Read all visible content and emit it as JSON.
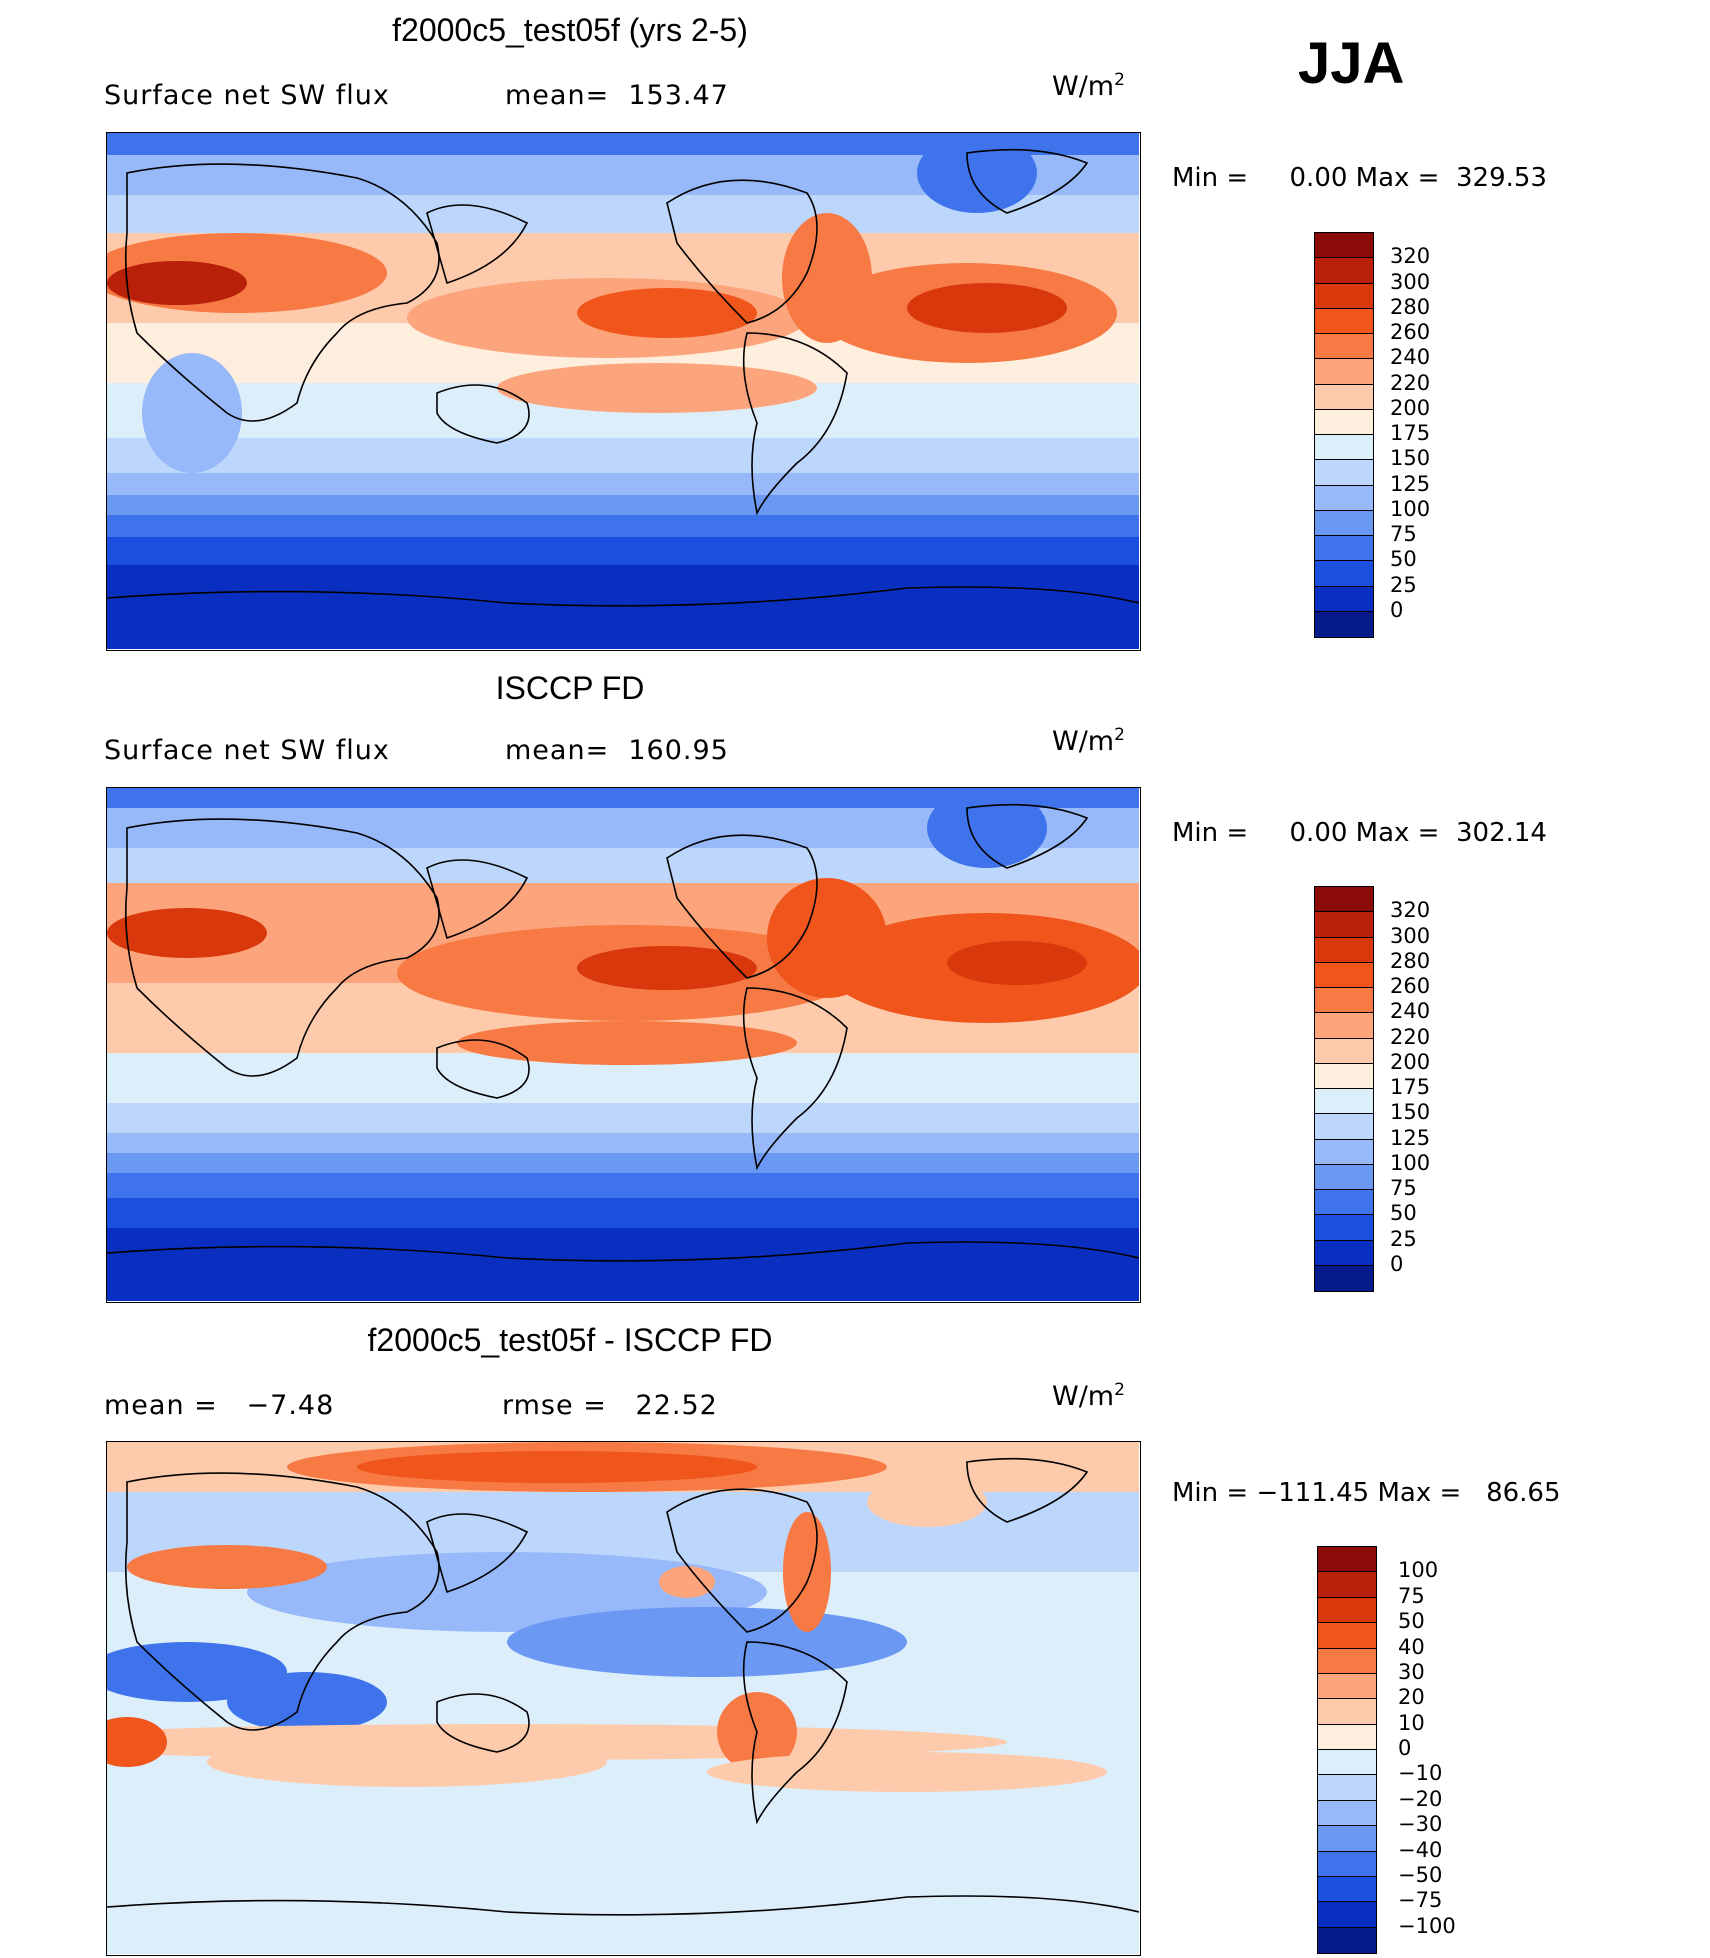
{
  "season": "JJA",
  "panels": [
    {
      "title": "f2000c5_test05f (yrs 2-5)",
      "left_text": "Surface net SW flux",
      "stat_text": "mean=  153.47",
      "units_base": "W/m",
      "units_exp": "2",
      "minmax": "Min =     0.00 Max =  329.53",
      "levels": [
        "320",
        "300",
        "280",
        "260",
        "240",
        "220",
        "200",
        "175",
        "150",
        "125",
        "100",
        "75",
        "50",
        "25",
        "0"
      ],
      "colors": [
        "#8b0a0a",
        "#b8200a",
        "#d9380c",
        "#f0551c",
        "#f77a45",
        "#fca57c",
        "#fdcbab",
        "#fdeedd",
        "#ddeefb",
        "#bdd6fb",
        "#97b9f9",
        "#6b98f3",
        "#3e73ec",
        "#1a4fe0",
        "#0a2fc0",
        "#061a8a"
      ]
    },
    {
      "title": "ISCCP FD",
      "left_text": "Surface net SW flux",
      "stat_text": "mean=  160.95",
      "units_base": "W/m",
      "units_exp": "2",
      "minmax": "Min =     0.00 Max =  302.14",
      "levels": [
        "320",
        "300",
        "280",
        "260",
        "240",
        "220",
        "200",
        "175",
        "150",
        "125",
        "100",
        "75",
        "50",
        "25",
        "0"
      ],
      "colors": [
        "#8b0a0a",
        "#b8200a",
        "#d9380c",
        "#f0551c",
        "#f77a45",
        "#fca57c",
        "#fdcbab",
        "#fdeedd",
        "#ddeefb",
        "#bdd6fb",
        "#97b9f9",
        "#6b98f3",
        "#3e73ec",
        "#1a4fe0",
        "#0a2fc0",
        "#061a8a"
      ]
    },
    {
      "title": "f2000c5_test05f - ISCCP FD",
      "left_text": "mean =   −7.48",
      "stat_text": "rmse =   22.52",
      "units_base": "W/m",
      "units_exp": "2",
      "minmax": "Min = −111.45 Max =   86.65",
      "levels": [
        "100",
        "75",
        "50",
        "40",
        "30",
        "20",
        "10",
        "0",
        "−10",
        "−20",
        "−30",
        "−40",
        "−50",
        "−75",
        "−100"
      ],
      "colors": [
        "#8b0a0a",
        "#b8200a",
        "#d9380c",
        "#f0551c",
        "#f77a45",
        "#fca57c",
        "#fdcbab",
        "#fdeedd",
        "#ddeefb",
        "#bdd6fb",
        "#97b9f9",
        "#6b98f3",
        "#3e73ec",
        "#1a4fe0",
        "#0a2fc0",
        "#061a8a"
      ]
    }
  ]
}
